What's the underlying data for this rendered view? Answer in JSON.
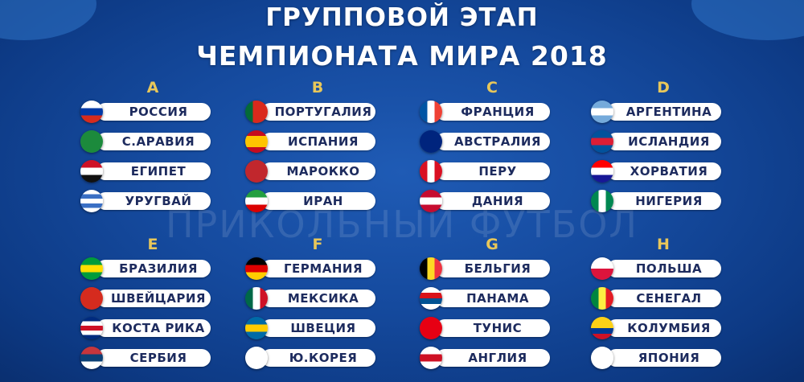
{
  "title_line1": "ГРУППОВОЙ ЭТАП",
  "title_line2": "ЧЕМПИОНАТА МИРА 2018",
  "watermark": "ПРИКОЛЬНЫЙ ФУТБОЛ",
  "colors": {
    "letter": "#e8c75a",
    "text": "#1d2b5e"
  },
  "groups": [
    {
      "letter": "A",
      "teams": [
        {
          "name": "РОССИЯ",
          "flag": {
            "dir": "h",
            "c": [
              "#ffffff",
              "#0039a6",
              "#d52b1e"
            ]
          }
        },
        {
          "name": "С.АРАВИЯ",
          "flag": {
            "dir": "h",
            "c": [
              "#1c8a3c"
            ]
          }
        },
        {
          "name": "ЕГИПЕТ",
          "flag": {
            "dir": "h",
            "c": [
              "#ce1126",
              "#ffffff",
              "#111111"
            ]
          }
        },
        {
          "name": "УРУГВАЙ",
          "flag": {
            "dir": "h",
            "c": [
              "#ffffff",
              "#3a6fc4",
              "#ffffff",
              "#3a6fc4",
              "#ffffff"
            ]
          }
        }
      ]
    },
    {
      "letter": "B",
      "teams": [
        {
          "name": "ПОРТУГАЛИЯ",
          "flag": {
            "dir": "v",
            "c": [
              "#046a38",
              "#da291c",
              "#da291c"
            ]
          }
        },
        {
          "name": "ИСПАНИЯ",
          "flag": {
            "dir": "h",
            "c": [
              "#c60b1e",
              "#ffc400",
              "#ffc400",
              "#c60b1e"
            ]
          }
        },
        {
          "name": "МАРОККО",
          "flag": {
            "dir": "h",
            "c": [
              "#c1272d"
            ]
          }
        },
        {
          "name": "ИРАН",
          "flag": {
            "dir": "h",
            "c": [
              "#239f40",
              "#ffffff",
              "#da0000"
            ]
          }
        }
      ]
    },
    {
      "letter": "C",
      "teams": [
        {
          "name": "ФРАНЦИЯ",
          "flag": {
            "dir": "v",
            "c": [
              "#0055a4",
              "#ffffff",
              "#ef4135"
            ]
          }
        },
        {
          "name": "АВСТРАЛИЯ",
          "flag": {
            "dir": "h",
            "c": [
              "#00247d"
            ]
          }
        },
        {
          "name": "ПЕРУ",
          "flag": {
            "dir": "v",
            "c": [
              "#d91023",
              "#ffffff",
              "#d91023"
            ]
          }
        },
        {
          "name": "ДАНИЯ",
          "flag": {
            "dir": "h",
            "c": [
              "#c60c30",
              "#ffffff",
              "#c60c30"
            ]
          }
        }
      ]
    },
    {
      "letter": "D",
      "teams": [
        {
          "name": "АРГЕНТИНА",
          "flag": {
            "dir": "h",
            "c": [
              "#75aadb",
              "#ffffff",
              "#75aadb"
            ]
          }
        },
        {
          "name": "ИСЛАНДИЯ",
          "flag": {
            "dir": "h",
            "c": [
              "#02529c",
              "#dc1e35",
              "#02529c"
            ]
          }
        },
        {
          "name": "ХОРВАТИЯ",
          "flag": {
            "dir": "h",
            "c": [
              "#ff0000",
              "#ffffff",
              "#171796"
            ]
          }
        },
        {
          "name": "НИГЕРИЯ",
          "flag": {
            "dir": "v",
            "c": [
              "#008751",
              "#ffffff",
              "#008751"
            ]
          }
        }
      ]
    },
    {
      "letter": "E",
      "teams": [
        {
          "name": "БРАЗИЛИЯ",
          "flag": {
            "dir": "h",
            "c": [
              "#009c3b",
              "#ffdf00",
              "#009c3b"
            ]
          }
        },
        {
          "name": "ШВЕЙЦАРИЯ",
          "flag": {
            "dir": "h",
            "c": [
              "#d52b1e"
            ]
          }
        },
        {
          "name": "КОСТА РИКА",
          "flag": {
            "dir": "h",
            "c": [
              "#002b7f",
              "#ffffff",
              "#ce1126",
              "#ffffff",
              "#002b7f"
            ]
          }
        },
        {
          "name": "СЕРБИЯ",
          "flag": {
            "dir": "h",
            "c": [
              "#c6363c",
              "#0c4076",
              "#ffffff"
            ]
          }
        }
      ]
    },
    {
      "letter": "F",
      "teams": [
        {
          "name": "ГЕРМАНИЯ",
          "flag": {
            "dir": "h",
            "c": [
              "#000000",
              "#dd0000",
              "#ffce00"
            ]
          }
        },
        {
          "name": "МЕКСИКА",
          "flag": {
            "dir": "v",
            "c": [
              "#006847",
              "#ffffff",
              "#ce1126"
            ]
          }
        },
        {
          "name": "ШВЕЦИЯ",
          "flag": {
            "dir": "h",
            "c": [
              "#006aa7",
              "#fecc00",
              "#006aa7"
            ]
          }
        },
        {
          "name": "Ю.КОРЕЯ",
          "flag": {
            "dir": "h",
            "c": [
              "#ffffff"
            ]
          }
        }
      ]
    },
    {
      "letter": "G",
      "teams": [
        {
          "name": "БЕЛЬГИЯ",
          "flag": {
            "dir": "v",
            "c": [
              "#000000",
              "#fdda24",
              "#ef3340"
            ]
          }
        },
        {
          "name": "ПАНАМА",
          "flag": {
            "dir": "h",
            "c": [
              "#ffffff",
              "#da121a",
              "#005293",
              "#ffffff"
            ]
          }
        },
        {
          "name": "ТУНИС",
          "flag": {
            "dir": "h",
            "c": [
              "#e70013"
            ]
          }
        },
        {
          "name": "АНГЛИЯ",
          "flag": {
            "dir": "h",
            "c": [
              "#ffffff",
              "#ce1124",
              "#ffffff"
            ]
          }
        }
      ]
    },
    {
      "letter": "H",
      "teams": [
        {
          "name": "ПОЛЬША",
          "flag": {
            "dir": "h",
            "c": [
              "#ffffff",
              "#dc143c"
            ]
          }
        },
        {
          "name": "СЕНЕГАЛ",
          "flag": {
            "dir": "v",
            "c": [
              "#00853f",
              "#fdef42",
              "#e31b23"
            ]
          }
        },
        {
          "name": "КОЛУМБИЯ",
          "flag": {
            "dir": "h",
            "c": [
              "#fcd116",
              "#fcd116",
              "#003893",
              "#ce1126"
            ]
          }
        },
        {
          "name": "ЯПОНИЯ",
          "flag": {
            "dir": "h",
            "c": [
              "#ffffff"
            ]
          }
        }
      ]
    }
  ]
}
